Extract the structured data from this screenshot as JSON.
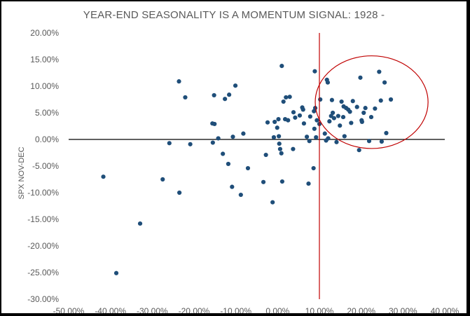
{
  "chart_data": {
    "type": "scatter",
    "title": "YEAR-END SEASONALITY IS A MOMENTUM SIGNAL: 1928 -",
    "xlabel": "",
    "ylabel": "SPX NOV-DEC",
    "xlim": [
      -50,
      40
    ],
    "ylim": [
      -30,
      20
    ],
    "x_ticks": [
      -50,
      -40,
      -30,
      -20,
      -10,
      0,
      10,
      20,
      30,
      40
    ],
    "y_ticks": [
      20,
      15,
      10,
      5,
      0,
      -5,
      -10,
      -15,
      -20,
      -25,
      -30
    ],
    "x_tick_labels": [
      "-50.00%",
      "-40.00%",
      "-30.00%",
      "-20.00%",
      "-10.00%",
      "0.00%",
      "10.00%",
      "20.00%",
      "30.00%",
      "40.00%"
    ],
    "y_tick_labels": [
      "20.00%",
      "15.00%",
      "10.00%",
      "5.00%",
      "0.00%",
      "-5.00%",
      "-10.00%",
      "-15.00%",
      "-20.00%",
      "-25.00%",
      "-30.00%"
    ],
    "grid": false,
    "vertical_line_x": 10,
    "annotation_ellipse": {
      "cx": 22.5,
      "cy": 7,
      "rx": 13.5,
      "ry": 8.7
    },
    "marker_color": "#1f4e79",
    "vline_color": "#c00000",
    "ellipse_color": "#c00000",
    "points": [
      [
        -41.7,
        -7.0
      ],
      [
        -38.6,
        -25.1
      ],
      [
        -32.9,
        -15.8
      ],
      [
        -27.5,
        -7.5
      ],
      [
        -25.9,
        -0.7
      ],
      [
        -23.6,
        10.9
      ],
      [
        -23.5,
        -10.0
      ],
      [
        -22.1,
        7.9
      ],
      [
        -20.9,
        -0.9
      ],
      [
        -15.6,
        3.0
      ],
      [
        -15.5,
        -0.6
      ],
      [
        -15.2,
        8.3
      ],
      [
        -15.1,
        2.9
      ],
      [
        -14.2,
        0.2
      ],
      [
        -13.1,
        -2.7
      ],
      [
        -12.6,
        7.6
      ],
      [
        -11.8,
        -4.6
      ],
      [
        -11.6,
        8.4
      ],
      [
        -10.9,
        -8.9
      ],
      [
        -10.7,
        0.5
      ],
      [
        -10.1,
        10.1
      ],
      [
        -8.8,
        -10.4
      ],
      [
        -8.2,
        1.1
      ],
      [
        -7.1,
        -5.4
      ],
      [
        -3.4,
        -8.0
      ],
      [
        -2.8,
        -2.9
      ],
      [
        -2.4,
        3.2
      ],
      [
        -1.2,
        -11.8
      ],
      [
        -0.9,
        0.4
      ],
      [
        -0.7,
        3.3
      ],
      [
        -0.1,
        2.2
      ],
      [
        0.2,
        3.8
      ],
      [
        0.3,
        0.6
      ],
      [
        0.4,
        -0.8
      ],
      [
        0.6,
        -1.8
      ],
      [
        0.9,
        -2.6
      ],
      [
        1.0,
        13.8
      ],
      [
        1.1,
        -7.9
      ],
      [
        1.4,
        7.1
      ],
      [
        1.8,
        3.8
      ],
      [
        2.0,
        7.9
      ],
      [
        2.5,
        3.6
      ],
      [
        2.9,
        8.0
      ],
      [
        3.7,
        -1.8
      ],
      [
        3.8,
        5.1
      ],
      [
        4.2,
        4.1
      ],
      [
        5.3,
        4.5
      ],
      [
        5.9,
        6.0
      ],
      [
        6.1,
        5.6
      ],
      [
        6.3,
        3.0
      ],
      [
        7.0,
        0.5
      ],
      [
        7.4,
        -8.3
      ],
      [
        7.6,
        -0.3
      ],
      [
        7.8,
        4.3
      ],
      [
        8.6,
        -5.4
      ],
      [
        8.7,
        5.3
      ],
      [
        8.8,
        2.0
      ],
      [
        8.9,
        12.8
      ],
      [
        9.0,
        5.9
      ],
      [
        9.2,
        0.4
      ],
      [
        9.4,
        3.6
      ],
      [
        10.0,
        2.9
      ],
      [
        10.2,
        7.5
      ],
      [
        11.3,
        1.1
      ],
      [
        11.6,
        -0.2
      ],
      [
        11.8,
        11.2
      ],
      [
        12.0,
        10.7
      ],
      [
        12.1,
        0.2
      ],
      [
        12.4,
        3.4
      ],
      [
        12.8,
        4.4
      ],
      [
        13.0,
        7.4
      ],
      [
        13.2,
        5.0
      ],
      [
        13.5,
        4.0
      ],
      [
        14.1,
        -0.5
      ],
      [
        14.5,
        4.4
      ],
      [
        14.9,
        2.6
      ],
      [
        15.3,
        7.1
      ],
      [
        15.7,
        4.2
      ],
      [
        15.8,
        6.2
      ],
      [
        16.0,
        0.6
      ],
      [
        16.4,
        5.9
      ],
      [
        16.9,
        5.6
      ],
      [
        17.3,
        5.2
      ],
      [
        17.6,
        3.1
      ],
      [
        18.0,
        7.2
      ],
      [
        19.0,
        6.1
      ],
      [
        19.5,
        -2.0
      ],
      [
        19.8,
        11.6
      ],
      [
        20.1,
        3.6
      ],
      [
        20.2,
        3.3
      ],
      [
        20.6,
        5.0
      ],
      [
        21.0,
        5.9
      ],
      [
        21.9,
        -0.3
      ],
      [
        22.4,
        4.2
      ],
      [
        23.3,
        5.8
      ],
      [
        24.3,
        12.7
      ],
      [
        24.7,
        7.3
      ],
      [
        24.9,
        -0.4
      ],
      [
        25.6,
        10.7
      ],
      [
        26.0,
        1.2
      ],
      [
        27.1,
        7.5
      ]
    ]
  }
}
